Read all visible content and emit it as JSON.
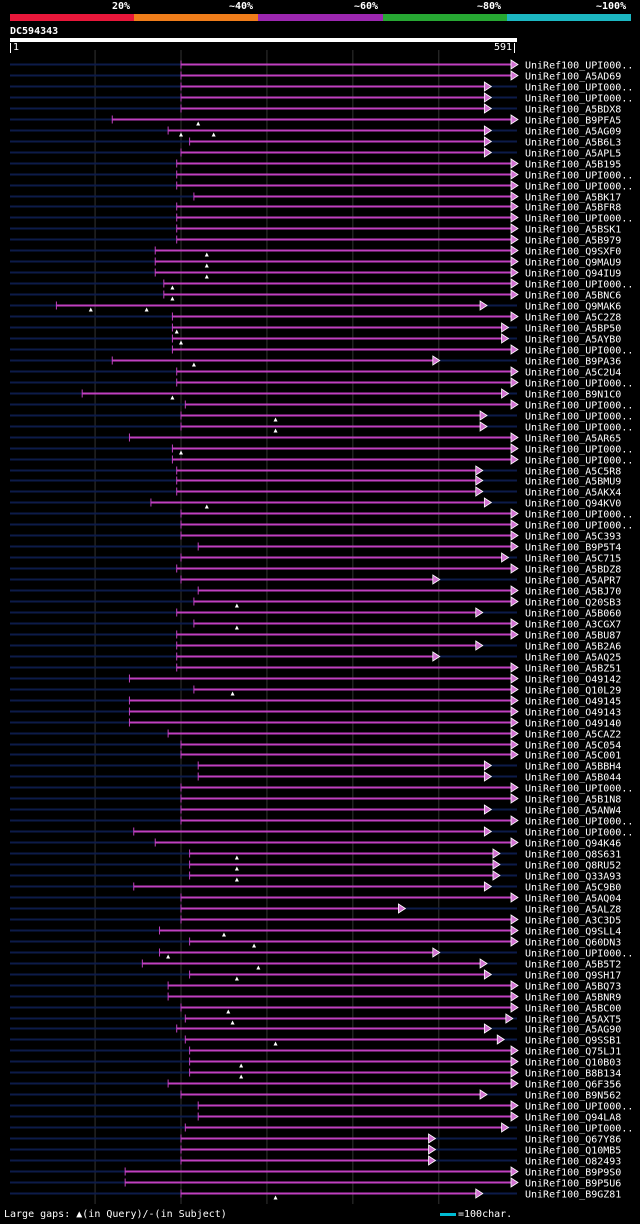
{
  "scale": {
    "labels": [
      "20%",
      "~40%",
      "~60%",
      "~80%",
      "~100%"
    ],
    "colors": [
      "#e8173a",
      "#f07d1a",
      "#9c27b0",
      "#27a833",
      "#1cb7c2"
    ]
  },
  "query": {
    "name": "DC594343",
    "start": "1",
    "end": "591",
    "length": 591
  },
  "hit_color": "#c040c0",
  "background_line_color": "#0d1b4a",
  "hits": [
    {
      "label": "UniRef100_UPI000..",
      "start": 200,
      "end": 591,
      "gaps": []
    },
    {
      "label": "UniRef100_A5AD69",
      "start": 200,
      "end": 591,
      "gaps": []
    },
    {
      "label": "UniRef100_UPI000..",
      "start": 200,
      "end": 560,
      "gaps": []
    },
    {
      "label": "UniRef100_UPI000..",
      "start": 200,
      "end": 560,
      "gaps": []
    },
    {
      "label": "UniRef100_A5BDX8",
      "start": 200,
      "end": 560,
      "gaps": []
    },
    {
      "label": "UniRef100_B9PFA5",
      "start": 120,
      "end": 591,
      "gaps": [
        220
      ]
    },
    {
      "label": "UniRef100_A5AG09",
      "start": 185,
      "end": 560,
      "gaps": [
        200,
        238
      ]
    },
    {
      "label": "UniRef100_A5B6L3",
      "start": 210,
      "end": 560,
      "gaps": []
    },
    {
      "label": "UniRef100_A5APL5",
      "start": 200,
      "end": 560,
      "gaps": []
    },
    {
      "label": "UniRef100_A5B195",
      "start": 195,
      "end": 591,
      "gaps": []
    },
    {
      "label": "UniRef100_UPI000..",
      "start": 195,
      "end": 591,
      "gaps": []
    },
    {
      "label": "UniRef100_UPI000..",
      "start": 195,
      "end": 591,
      "gaps": []
    },
    {
      "label": "UniRef100_A5BK17",
      "start": 215,
      "end": 591,
      "gaps": []
    },
    {
      "label": "UniRef100_A5BFR8",
      "start": 195,
      "end": 591,
      "gaps": []
    },
    {
      "label": "UniRef100_UPI000..",
      "start": 195,
      "end": 591,
      "gaps": []
    },
    {
      "label": "UniRef100_A5BSK1",
      "start": 195,
      "end": 591,
      "gaps": []
    },
    {
      "label": "UniRef100_A5B979",
      "start": 195,
      "end": 591,
      "gaps": []
    },
    {
      "label": "UniRef100_Q9SXF0",
      "start": 170,
      "end": 591,
      "gaps": [
        230
      ]
    },
    {
      "label": "UniRef100_Q9MAU9",
      "start": 170,
      "end": 591,
      "gaps": [
        230
      ]
    },
    {
      "label": "UniRef100_Q94IU9",
      "start": 170,
      "end": 591,
      "gaps": [
        230
      ]
    },
    {
      "label": "UniRef100_UPI000..",
      "start": 180,
      "end": 591,
      "gaps": [
        190
      ]
    },
    {
      "label": "UniRef100_A5BNC6",
      "start": 180,
      "end": 591,
      "gaps": [
        190
      ]
    },
    {
      "label": "UniRef100_Q9MAK6",
      "start": 55,
      "end": 555,
      "gaps": [
        95,
        160
      ]
    },
    {
      "label": "UniRef100_A5C2Z8",
      "start": 190,
      "end": 591,
      "gaps": []
    },
    {
      "label": "UniRef100_A5BP50",
      "start": 190,
      "end": 580,
      "gaps": [
        195
      ]
    },
    {
      "label": "UniRef100_A5AYB0",
      "start": 190,
      "end": 580,
      "gaps": [
        200
      ]
    },
    {
      "label": "UniRef100_UPI000..",
      "start": 190,
      "end": 591,
      "gaps": []
    },
    {
      "label": "UniRef100_B9PA36",
      "start": 120,
      "end": 500,
      "gaps": [
        215
      ]
    },
    {
      "label": "UniRef100_A5C2U4",
      "start": 195,
      "end": 591,
      "gaps": []
    },
    {
      "label": "UniRef100_UPI000..",
      "start": 195,
      "end": 591,
      "gaps": []
    },
    {
      "label": "UniRef100_B9N1C0",
      "start": 85,
      "end": 580,
      "gaps": [
        190
      ]
    },
    {
      "label": "UniRef100_UPI000..",
      "start": 205,
      "end": 591,
      "gaps": []
    },
    {
      "label": "UniRef100_UPI000..",
      "start": 200,
      "end": 555,
      "gaps": [
        310
      ]
    },
    {
      "label": "UniRef100_UPI000..",
      "start": 200,
      "end": 555,
      "gaps": [
        310
      ]
    },
    {
      "label": "UniRef100_A5AR65",
      "start": 140,
      "end": 591,
      "gaps": []
    },
    {
      "label": "UniRef100_UPI000..",
      "start": 190,
      "end": 591,
      "gaps": [
        200
      ]
    },
    {
      "label": "UniRef100_UPI000..",
      "start": 190,
      "end": 591,
      "gaps": []
    },
    {
      "label": "UniRef100_A5C5R8",
      "start": 195,
      "end": 550,
      "gaps": []
    },
    {
      "label": "UniRef100_A5BMU9",
      "start": 195,
      "end": 550,
      "gaps": []
    },
    {
      "label": "UniRef100_A5AKX4",
      "start": 195,
      "end": 550,
      "gaps": []
    },
    {
      "label": "UniRef100_Q94KV0",
      "start": 165,
      "end": 560,
      "gaps": [
        230
      ]
    },
    {
      "label": "UniRef100_UPI000..",
      "start": 200,
      "end": 591,
      "gaps": []
    },
    {
      "label": "UniRef100_UPI000..",
      "start": 200,
      "end": 591,
      "gaps": []
    },
    {
      "label": "UniRef100_A5C393",
      "start": 200,
      "end": 591,
      "gaps": []
    },
    {
      "label": "UniRef100_B9P5T4",
      "start": 220,
      "end": 591,
      "gaps": []
    },
    {
      "label": "UniRef100_A5C715",
      "start": 200,
      "end": 580,
      "gaps": []
    },
    {
      "label": "UniRef100_A5BDZ8",
      "start": 195,
      "end": 591,
      "gaps": []
    },
    {
      "label": "UniRef100_A5APR7",
      "start": 200,
      "end": 500,
      "gaps": []
    },
    {
      "label": "UniRef100_A5BJ70",
      "start": 220,
      "end": 591,
      "gaps": []
    },
    {
      "label": "UniRef100_Q20SB3",
      "start": 215,
      "end": 591,
      "gaps": [
        265
      ]
    },
    {
      "label": "UniRef100_A5B060",
      "start": 195,
      "end": 550,
      "gaps": []
    },
    {
      "label": "UniRef100_A3CGX7",
      "start": 215,
      "end": 591,
      "gaps": [
        265
      ]
    },
    {
      "label": "UniRef100_A5BU87",
      "start": 195,
      "end": 591,
      "gaps": []
    },
    {
      "label": "UniRef100_A5B2A6",
      "start": 195,
      "end": 550,
      "gaps": []
    },
    {
      "label": "UniRef100_A5AQ25",
      "start": 195,
      "end": 500,
      "gaps": []
    },
    {
      "label": "UniRef100_A5BZ51",
      "start": 195,
      "end": 591,
      "gaps": []
    },
    {
      "label": "UniRef100_O49142",
      "start": 140,
      "end": 591,
      "gaps": []
    },
    {
      "label": "UniRef100_Q10L29",
      "start": 215,
      "end": 591,
      "gaps": [
        260
      ]
    },
    {
      "label": "UniRef100_O49145",
      "start": 140,
      "end": 591,
      "gaps": []
    },
    {
      "label": "UniRef100_O49143",
      "start": 140,
      "end": 591,
      "gaps": []
    },
    {
      "label": "UniRef100_O49140",
      "start": 140,
      "end": 591,
      "gaps": []
    },
    {
      "label": "UniRef100_A5CAZ2",
      "start": 185,
      "end": 591,
      "gaps": []
    },
    {
      "label": "UniRef100_A5C054",
      "start": 200,
      "end": 591,
      "gaps": []
    },
    {
      "label": "UniRef100_A5C001",
      "start": 200,
      "end": 591,
      "gaps": []
    },
    {
      "label": "UniRef100_A5BBH4",
      "start": 220,
      "end": 560,
      "gaps": []
    },
    {
      "label": "UniRef100_A5B044",
      "start": 220,
      "end": 560,
      "gaps": []
    },
    {
      "label": "UniRef100_UPI000..",
      "start": 200,
      "end": 591,
      "gaps": []
    },
    {
      "label": "UniRef100_A5B1N8",
      "start": 200,
      "end": 591,
      "gaps": []
    },
    {
      "label": "UniRef100_A5ANW4",
      "start": 200,
      "end": 560,
      "gaps": []
    },
    {
      "label": "UniRef100_UPI000..",
      "start": 200,
      "end": 591,
      "gaps": []
    },
    {
      "label": "UniRef100_UPI000..",
      "start": 145,
      "end": 560,
      "gaps": []
    },
    {
      "label": "UniRef100_Q94K46",
      "start": 170,
      "end": 591,
      "gaps": []
    },
    {
      "label": "UniRef100_Q8S631",
      "start": 210,
      "end": 570,
      "gaps": [
        265
      ]
    },
    {
      "label": "UniRef100_Q8RU52",
      "start": 210,
      "end": 570,
      "gaps": [
        265
      ]
    },
    {
      "label": "UniRef100_Q33A93",
      "start": 210,
      "end": 570,
      "gaps": [
        265
      ]
    },
    {
      "label": "UniRef100_A5C9B0",
      "start": 145,
      "end": 560,
      "gaps": []
    },
    {
      "label": "UniRef100_A5AQ04",
      "start": 200,
      "end": 591,
      "gaps": []
    },
    {
      "label": "UniRef100_A5ALZ8",
      "start": 200,
      "end": 460,
      "gaps": []
    },
    {
      "label": "UniRef100_A3C3D5",
      "start": 200,
      "end": 591,
      "gaps": []
    },
    {
      "label": "UniRef100_Q9SLL4",
      "start": 175,
      "end": 591,
      "gaps": [
        250
      ]
    },
    {
      "label": "UniRef100_Q60DN3",
      "start": 210,
      "end": 591,
      "gaps": [
        285
      ]
    },
    {
      "label": "UniRef100_UPI000..",
      "start": 175,
      "end": 500,
      "gaps": [
        185
      ]
    },
    {
      "label": "UniRef100_A5B5T2",
      "start": 155,
      "end": 555,
      "gaps": [
        290
      ]
    },
    {
      "label": "UniRef100_Q9SH17",
      "start": 210,
      "end": 560,
      "gaps": [
        265
      ]
    },
    {
      "label": "UniRef100_A5BQ73",
      "start": 185,
      "end": 591,
      "gaps": []
    },
    {
      "label": "UniRef100_A5BNR9",
      "start": 185,
      "end": 591,
      "gaps": []
    },
    {
      "label": "UniRef100_A5BC00",
      "start": 200,
      "end": 591,
      "gaps": [
        255
      ]
    },
    {
      "label": "UniRef100_A5AXT5",
      "start": 205,
      "end": 585,
      "gaps": [
        260
      ]
    },
    {
      "label": "UniRef100_A5AG90",
      "start": 195,
      "end": 560,
      "gaps": []
    },
    {
      "label": "UniRef100_Q9SSB1",
      "start": 205,
      "end": 575,
      "gaps": [
        310
      ]
    },
    {
      "label": "UniRef100_Q75LJ1",
      "start": 210,
      "end": 591,
      "gaps": []
    },
    {
      "label": "UniRef100_Q10B03",
      "start": 210,
      "end": 591,
      "gaps": [
        270
      ]
    },
    {
      "label": "UniRef100_B8B134",
      "start": 210,
      "end": 591,
      "gaps": [
        270
      ]
    },
    {
      "label": "UniRef100_Q6F356",
      "start": 185,
      "end": 591,
      "gaps": []
    },
    {
      "label": "UniRef100_B9N562",
      "start": 200,
      "end": 555,
      "gaps": []
    },
    {
      "label": "UniRef100_UPI000..",
      "start": 220,
      "end": 591,
      "gaps": []
    },
    {
      "label": "UniRef100_Q94LA8",
      "start": 220,
      "end": 591,
      "gaps": []
    },
    {
      "label": "UniRef100_UPI000..",
      "start": 205,
      "end": 580,
      "gaps": []
    },
    {
      "label": "UniRef100_Q67Y86",
      "start": 200,
      "end": 495,
      "gaps": []
    },
    {
      "label": "UniRef100_Q10MB5",
      "start": 200,
      "end": 495,
      "gaps": []
    },
    {
      "label": "UniRef100_O82493",
      "start": 200,
      "end": 495,
      "gaps": []
    },
    {
      "label": "UniRef100_B9P9S0",
      "start": 135,
      "end": 591,
      "gaps": []
    },
    {
      "label": "UniRef100_B9P5U6",
      "start": 135,
      "end": 591,
      "gaps": []
    },
    {
      "label": "UniRef100_B9GZ81",
      "start": 200,
      "end": 550,
      "gaps": [
        310
      ]
    }
  ],
  "legend": {
    "large_gaps_prefix": "Large gaps: ",
    "large_gaps_query": "(in Query)/",
    "large_gaps_subject": "(in Subject)",
    "scale_note": "=100char."
  }
}
